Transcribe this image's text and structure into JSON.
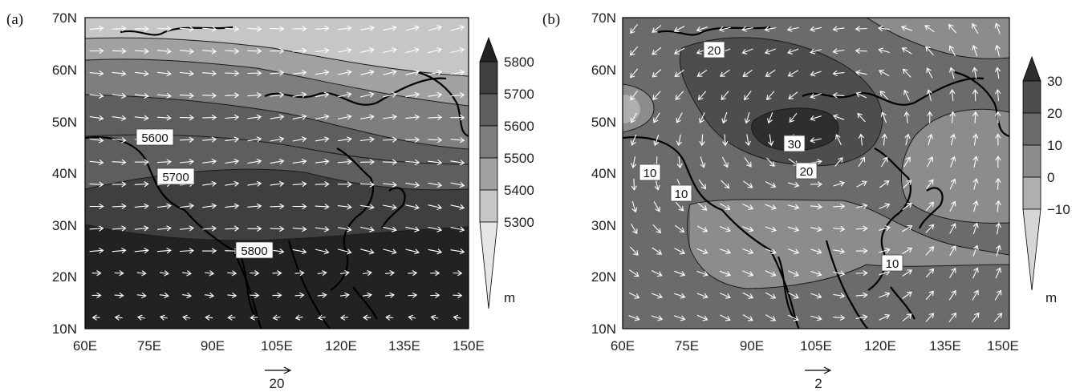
{
  "panels": [
    {
      "id": "a",
      "label": "(a)",
      "y_ticks": [
        "70N",
        "60N",
        "50N",
        "40N",
        "30N",
        "20N",
        "10N"
      ],
      "x_ticks": [
        "60E",
        "75E",
        "90E",
        "105E",
        "120E",
        "135E",
        "150E"
      ],
      "contour_labels": [
        "5600",
        "5700",
        "5800"
      ],
      "colorbar_labels": [
        "5800",
        "5700",
        "5600",
        "5500",
        "5400",
        "5300"
      ],
      "colorbar_unit": "m",
      "colorbar_colors": [
        "#222222",
        "#3f3f3f",
        "#5e5e5e",
        "#7e7e7e",
        "#a1a1a1",
        "#c6c6c6",
        "#e6e6e6"
      ],
      "ref_vector_label": "20"
    },
    {
      "id": "b",
      "label": "(b)",
      "y_ticks": [
        "70N",
        "60N",
        "50N",
        "40N",
        "30N",
        "20N",
        "10N"
      ],
      "x_ticks": [
        "60E",
        "75E",
        "90E",
        "105E",
        "120E",
        "135E",
        "150E"
      ],
      "contour_labels": [
        "20",
        "30",
        "20",
        "10",
        "10",
        "10"
      ],
      "colorbar_labels": [
        "30",
        "20",
        "10",
        "0",
        "−10"
      ],
      "colorbar_unit": "m",
      "colorbar_colors": [
        "#2e2e2e",
        "#4d4d4d",
        "#6b6b6b",
        "#8c8c8c",
        "#afafaf",
        "#d6d6d6"
      ],
      "ref_vector_label": "2"
    }
  ]
}
